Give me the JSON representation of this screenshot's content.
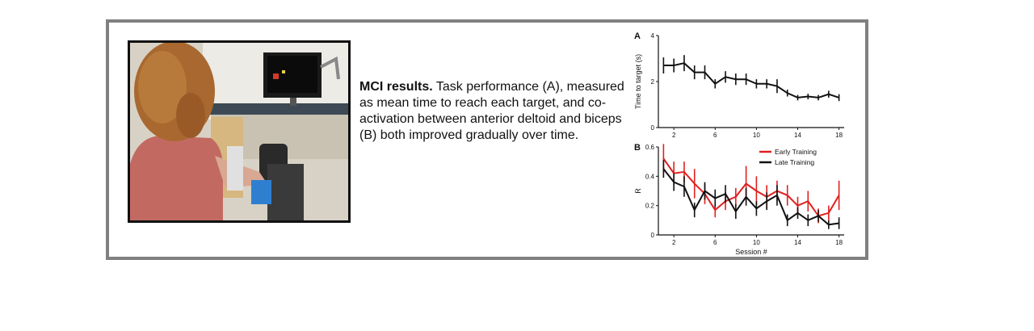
{
  "caption": {
    "heading": "MCI results.",
    "body": "Task performance (A), measured as mean time to reach each target, and co-activation between anterior deltoid and biceps (B) both improved gradually over time."
  },
  "chart_data": [
    {
      "type": "line",
      "panel_label": "A",
      "ylabel": "Time to target (s)",
      "xlabel": "",
      "xlim": [
        0.5,
        18.5
      ],
      "ylim": [
        0,
        4
      ],
      "xticks": [
        "2",
        "6",
        "10",
        "14",
        "18"
      ],
      "yticks": [
        "0",
        "2",
        "4"
      ],
      "series": [
        {
          "color": "#111111",
          "x": [
            1,
            2,
            3,
            4,
            5,
            6,
            7,
            8,
            9,
            10,
            11,
            12,
            13,
            14,
            15,
            16,
            17,
            18
          ],
          "y": [
            2.7,
            2.7,
            2.8,
            2.4,
            2.4,
            1.9,
            2.2,
            2.1,
            2.1,
            1.9,
            1.9,
            1.8,
            1.5,
            1.3,
            1.35,
            1.3,
            1.45,
            1.3
          ],
          "err": [
            0.35,
            0.3,
            0.35,
            0.3,
            0.3,
            0.2,
            0.25,
            0.25,
            0.25,
            0.2,
            0.2,
            0.3,
            0.15,
            0.12,
            0.12,
            0.12,
            0.15,
            0.15
          ]
        }
      ]
    },
    {
      "type": "line",
      "panel_label": "B",
      "ylabel": "R",
      "xlabel": "Session #",
      "xlim": [
        0.5,
        18.5
      ],
      "ylim": [
        0,
        0.6
      ],
      "xticks": [
        "2",
        "6",
        "10",
        "14",
        "18"
      ],
      "yticks": [
        "0",
        "0.2",
        "0.4",
        "0.6"
      ],
      "legend_position": "top-right",
      "series": [
        {
          "name": "Early Training",
          "color": "#e02020",
          "x": [
            1,
            2,
            3,
            4,
            5,
            6,
            7,
            8,
            9,
            10,
            11,
            12,
            13,
            14,
            15,
            16,
            17,
            18
          ],
          "y": [
            0.52,
            0.42,
            0.43,
            0.35,
            0.28,
            0.17,
            0.23,
            0.26,
            0.35,
            0.3,
            0.26,
            0.3,
            0.27,
            0.2,
            0.23,
            0.13,
            0.15,
            0.27
          ],
          "err": [
            0.1,
            0.08,
            0.07,
            0.1,
            0.07,
            0.05,
            0.06,
            0.06,
            0.12,
            0.1,
            0.08,
            0.07,
            0.07,
            0.06,
            0.07,
            0.05,
            0.05,
            0.1
          ]
        },
        {
          "name": "Late Training",
          "color": "#111111",
          "x": [
            1,
            2,
            3,
            4,
            5,
            6,
            7,
            8,
            9,
            10,
            11,
            12,
            13,
            14,
            15,
            16,
            17,
            18
          ],
          "y": [
            0.45,
            0.36,
            0.33,
            0.17,
            0.3,
            0.25,
            0.28,
            0.16,
            0.26,
            0.18,
            0.23,
            0.27,
            0.1,
            0.15,
            0.1,
            0.13,
            0.07,
            0.08
          ],
          "err": [
            0.06,
            0.06,
            0.07,
            0.05,
            0.06,
            0.06,
            0.06,
            0.05,
            0.06,
            0.05,
            0.06,
            0.07,
            0.04,
            0.04,
            0.04,
            0.04,
            0.03,
            0.04
          ]
        }
      ]
    }
  ]
}
